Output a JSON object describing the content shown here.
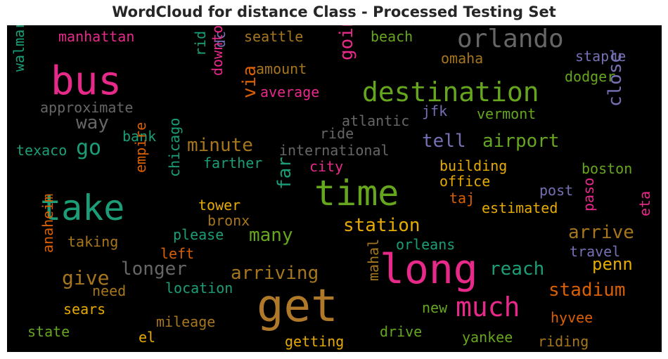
{
  "chart_data": {
    "type": "wordcloud",
    "title": "WordCloud for distance Class - Processed Testing Set",
    "background": "#000000",
    "words": [
      {
        "text": "get",
        "color": "#b0792a"
      },
      {
        "text": "long",
        "color": "#e7298a"
      },
      {
        "text": "time",
        "color": "#66a61e"
      },
      {
        "text": "take",
        "color": "#1b9e77"
      },
      {
        "text": "bus",
        "color": "#e7298a"
      },
      {
        "text": "destination",
        "color": "#66a61e"
      },
      {
        "text": "orlando",
        "color": "#666666"
      },
      {
        "text": "much",
        "color": "#e7298a"
      },
      {
        "text": "station",
        "color": "#e6ab02"
      },
      {
        "text": "airport",
        "color": "#66a61e"
      },
      {
        "text": "tell",
        "color": "#7570b3"
      },
      {
        "text": "stadium",
        "color": "#d95f02"
      },
      {
        "text": "reach",
        "color": "#1b9e77"
      },
      {
        "text": "arrive",
        "color": "#a6761d"
      },
      {
        "text": "arriving",
        "color": "#a6761d"
      },
      {
        "text": "longer",
        "color": "#666666"
      },
      {
        "text": "many",
        "color": "#66a61e"
      },
      {
        "text": "go",
        "color": "#1b9e77"
      },
      {
        "text": "give",
        "color": "#a6761d"
      },
      {
        "text": "minute",
        "color": "#a6761d"
      },
      {
        "text": "way",
        "color": "#666666"
      },
      {
        "text": "penn",
        "color": "#e6ab02"
      },
      {
        "text": "close",
        "color": "#7570b3"
      },
      {
        "text": "going",
        "color": "#e7298a"
      },
      {
        "text": "far",
        "color": "#1b9e77"
      },
      {
        "text": "via",
        "color": "#d95f02"
      },
      {
        "text": "manhattan",
        "color": "#e7298a"
      },
      {
        "text": "seattle",
        "color": "#a6761d"
      },
      {
        "text": "beach",
        "color": "#66a61e"
      },
      {
        "text": "omaha",
        "color": "#a6761d"
      },
      {
        "text": "staple",
        "color": "#7570b3"
      },
      {
        "text": "dodger",
        "color": "#66a61e"
      },
      {
        "text": "amount",
        "color": "#a6761d"
      },
      {
        "text": "average",
        "color": "#e7298a"
      },
      {
        "text": "approximate",
        "color": "#666666"
      },
      {
        "text": "walmart",
        "color": "#1b9e77"
      },
      {
        "text": "rid",
        "color": "#1b9e77"
      },
      {
        "text": "dc",
        "color": "#7570b3"
      },
      {
        "text": "downtown",
        "color": "#e7298a"
      },
      {
        "text": "jfk",
        "color": "#7570b3"
      },
      {
        "text": "vermont",
        "color": "#66a61e"
      },
      {
        "text": "atlantic",
        "color": "#666666"
      },
      {
        "text": "ride",
        "color": "#666666"
      },
      {
        "text": "bank",
        "color": "#1b9e77"
      },
      {
        "text": "texaco",
        "color": "#1b9e77"
      },
      {
        "text": "international",
        "color": "#666666"
      },
      {
        "text": "farther",
        "color": "#1b9e77"
      },
      {
        "text": "city",
        "color": "#e7298a"
      },
      {
        "text": "building",
        "color": "#e6ab02"
      },
      {
        "text": "boston",
        "color": "#66a61e"
      },
      {
        "text": "office",
        "color": "#e6ab02"
      },
      {
        "text": "empire",
        "color": "#d95f02"
      },
      {
        "text": "chicago",
        "color": "#1b9e77"
      },
      {
        "text": "tower",
        "color": "#e6ab02"
      },
      {
        "text": "post",
        "color": "#7570b3"
      },
      {
        "text": "taj",
        "color": "#d95f02"
      },
      {
        "text": "paso",
        "color": "#e7298a"
      },
      {
        "text": "eta",
        "color": "#e7298a"
      },
      {
        "text": "estimated",
        "color": "#e6ab02"
      },
      {
        "text": "bronx",
        "color": "#a6761d"
      },
      {
        "text": "please",
        "color": "#1b9e77"
      },
      {
        "text": "taking",
        "color": "#a6761d"
      },
      {
        "text": "left",
        "color": "#d95f02"
      },
      {
        "text": "orleans",
        "color": "#1b9e77"
      },
      {
        "text": "travel",
        "color": "#7570b3"
      },
      {
        "text": "anaheim",
        "color": "#d95f02"
      },
      {
        "text": "location",
        "color": "#1b9e77"
      },
      {
        "text": "need",
        "color": "#a6761d"
      },
      {
        "text": "mahal",
        "color": "#a6761d"
      },
      {
        "text": "sears",
        "color": "#e6ab02"
      },
      {
        "text": "new",
        "color": "#66a61e"
      },
      {
        "text": "hyvee",
        "color": "#d95f02"
      },
      {
        "text": "mileage",
        "color": "#a6761d"
      },
      {
        "text": "state",
        "color": "#66a61e"
      },
      {
        "text": "el",
        "color": "#e6ab02"
      },
      {
        "text": "drive",
        "color": "#66a61e"
      },
      {
        "text": "yankee",
        "color": "#66a61e"
      },
      {
        "text": "getting",
        "color": "#e6ab02"
      },
      {
        "text": "riding",
        "color": "#a6761d"
      }
    ]
  }
}
